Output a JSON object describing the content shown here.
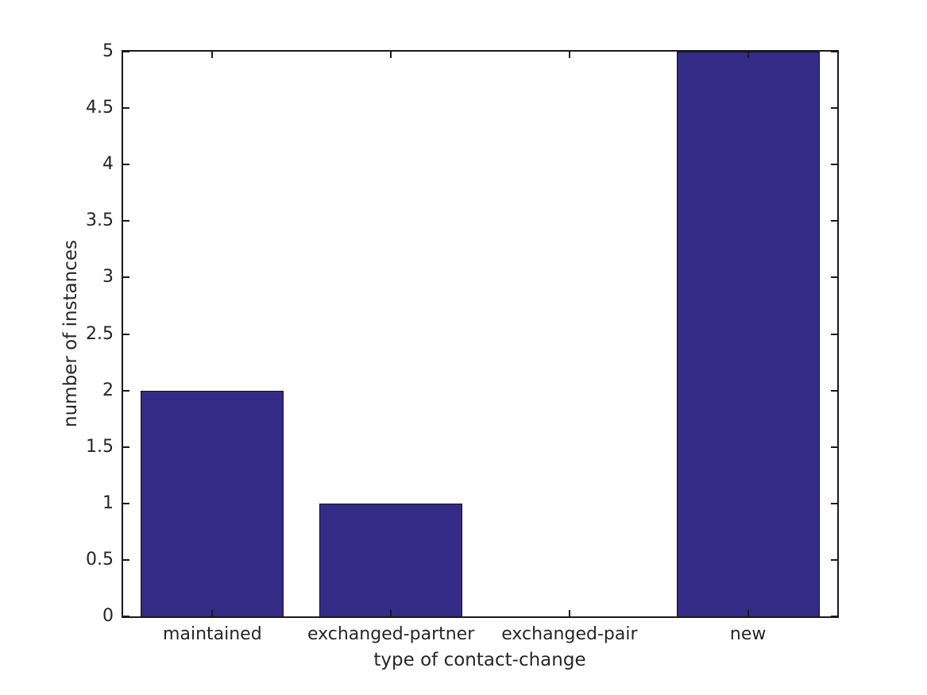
{
  "chart_data": {
    "type": "bar",
    "title": "",
    "xlabel": "type of contact-change",
    "ylabel": "number of instances",
    "categories": [
      "maintained",
      "exchanged-partner",
      "exchanged-pair",
      "new"
    ],
    "values": [
      2,
      1,
      0,
      5
    ],
    "ylim": [
      0,
      5
    ],
    "yticks": [
      0,
      0.5,
      1,
      1.5,
      2,
      2.5,
      3,
      3.5,
      4,
      4.5,
      5
    ],
    "bar_width_fraction": 0.8,
    "grid": false,
    "legend": null,
    "colors": {
      "bar_fill": "#342b87",
      "bar_edge": "#10101a",
      "axis": "#1a1a1a",
      "text": "#262626",
      "background": "#ffffff"
    }
  }
}
